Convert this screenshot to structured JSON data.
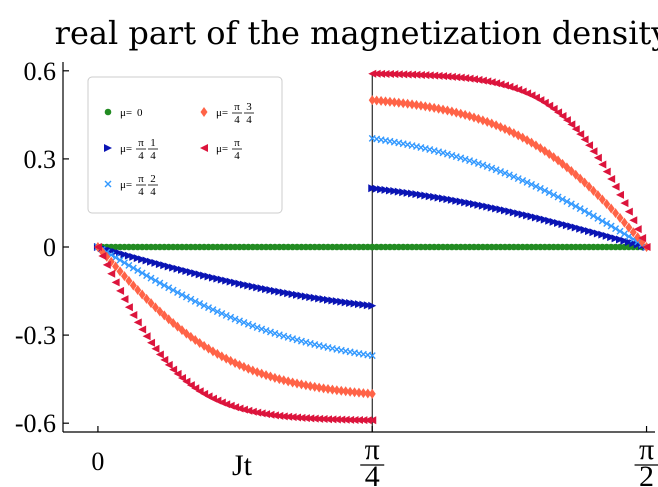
{
  "chart_data": {
    "type": "scatter",
    "title": "real part of the magnetization density",
    "xlabel": "Jt",
    "ylabel": "",
    "xlim": [
      0,
      1.5708
    ],
    "ylim": [
      -0.63,
      0.63
    ],
    "yticks": [
      {
        "value": 0.6,
        "label": "0.6"
      },
      {
        "value": 0.3,
        "label": "0.3"
      },
      {
        "value": 0,
        "label": "0"
      },
      {
        "value": -0.3,
        "label": "-0.3"
      },
      {
        "value": -0.6,
        "label": "-0.6"
      }
    ],
    "xticks": [
      {
        "value": 0,
        "label": "0",
        "num": "",
        "den": ""
      },
      {
        "value": 0.7854,
        "label": "",
        "num": "π",
        "den": "4"
      },
      {
        "value": 1.5708,
        "label": "",
        "num": "π",
        "den": "2"
      }
    ],
    "legend_position": "upper-left",
    "series": [
      {
        "name": "μ=0",
        "marker": "circle",
        "color": "#228b22",
        "amplitude": 0.0,
        "steepness": 1.0
      },
      {
        "name": "μ=π/4·1/4",
        "marker": "triangle-right",
        "color": "#0a14b4",
        "amplitude": 0.2,
        "steepness": 1.0
      },
      {
        "name": "μ=π/4·2/4",
        "marker": "x",
        "color": "#3399ff",
        "amplitude": 0.37,
        "steepness": 1.3
      },
      {
        "name": "μ=π/4·3/4",
        "marker": "diamond",
        "color": "#ff6347",
        "amplitude": 0.5,
        "steepness": 2.0
      },
      {
        "name": "μ=π/4",
        "marker": "triangle-left",
        "color": "#dc143c",
        "amplitude": 0.59,
        "steepness": 3.2
      }
    ],
    "legend_entries": [
      {
        "prefix": "μ=",
        "num1": "",
        "den1": "",
        "num2": "",
        "den2": "",
        "text": "0"
      },
      {
        "prefix": "μ=",
        "num1": "π",
        "den1": "4",
        "num2": "1",
        "den2": "4",
        "text": ""
      },
      {
        "prefix": "μ=",
        "num1": "π",
        "den1": "4",
        "num2": "2",
        "den2": "4",
        "text": ""
      },
      {
        "prefix": "μ=",
        "num1": "π",
        "den1": "4",
        "num2": "3",
        "den2": "4",
        "text": ""
      },
      {
        "prefix": "μ=",
        "num1": "π",
        "den1": "4",
        "num2": "",
        "den2": "",
        "text": ""
      }
    ],
    "points_per_half": 62,
    "vertical_line_at": 0.7854
  }
}
